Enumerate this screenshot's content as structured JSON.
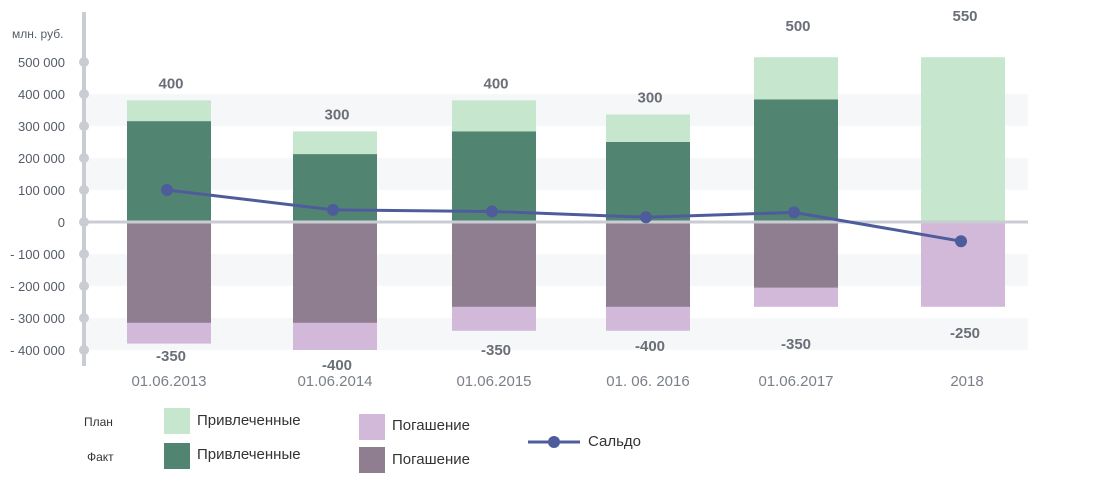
{
  "chart_data": {
    "type": "bar",
    "unit_label": "млн. руб.",
    "categories": [
      "01.06.2013",
      "01.06.2014",
      "01.06.2015",
      "01. 06. 2016",
      "01.06.2017",
      "2018"
    ],
    "y_ticks": [
      {
        "value": 500000,
        "label": "500 000"
      },
      {
        "value": 400000,
        "label": "400 000"
      },
      {
        "value": 300000,
        "label": "300 000"
      },
      {
        "value": 200000,
        "label": "200 000"
      },
      {
        "value": 100000,
        "label": "100 000"
      },
      {
        "value": 0,
        "label": "0"
      },
      {
        "value": -100000,
        "label": "- 100 000"
      },
      {
        "value": -200000,
        "label": "- 200 000"
      },
      {
        "value": -300000,
        "label": "- 300 000"
      },
      {
        "value": -400000,
        "label": "- 400 000"
      }
    ],
    "ylim": [
      -450000,
      560000
    ],
    "series": [
      {
        "name": "Привлеченные",
        "group": "План",
        "color": "#c6e6cd",
        "values": [
          380000,
          283000,
          380000,
          336000,
          515000,
          515000
        ]
      },
      {
        "name": "Привлеченные",
        "group": "Факт",
        "color": "#528571",
        "values": [
          315000,
          212000,
          283000,
          250000,
          383000,
          null
        ]
      },
      {
        "name": "Погашение",
        "group": "План",
        "color": "#d3b9d9",
        "values": [
          -380000,
          -400000,
          -340000,
          -340000,
          -265000,
          -265000
        ]
      },
      {
        "name": "Погашение",
        "group": "Факт",
        "color": "#8e7e90",
        "values": [
          -315000,
          -315000,
          -265000,
          -265000,
          -205000,
          null
        ]
      },
      {
        "name": "Сальдо",
        "type": "line",
        "color": "#4f5c9c",
        "values": [
          100000,
          38000,
          33000,
          15000,
          30000,
          -60000
        ]
      }
    ],
    "bar_top_labels": [
      "400",
      "300",
      "400",
      "300",
      "500",
      "550"
    ],
    "bar_bottom_labels": [
      "-350",
      "-400",
      "-350",
      "-400",
      "-350",
      "-250"
    ],
    "grid": "alternating bands"
  },
  "legend": {
    "plan_label": "План",
    "fact_label": "Факт",
    "plan_attracted": "Привлеченные",
    "fact_attracted": "Привлеченные",
    "repayment_plan": "Погашение",
    "repayment_fact": "Погашение",
    "balance": "Сальдо"
  },
  "colors": {
    "plan_attracted": "#c6e6cd",
    "fact_attracted": "#528571",
    "plan_repayment": "#d3b9d9",
    "fact_repayment": "#8e7e90",
    "balance": "#4f5c9c",
    "axis": "#c9ccd3",
    "band": "#f6f7f9"
  }
}
